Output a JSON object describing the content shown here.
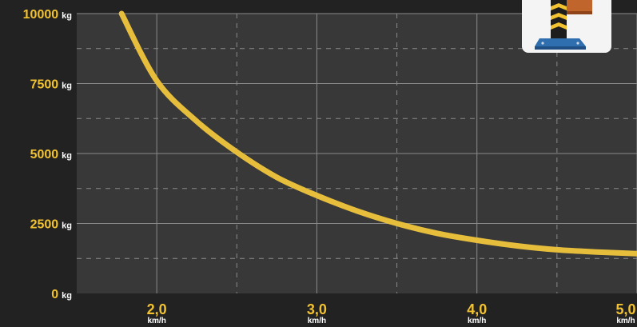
{
  "colors": {
    "background": "#222222",
    "plot_area": "#383838",
    "grid": "#8a8a8a",
    "curve": "#e6be3c",
    "tick_number": "#f2c230",
    "tick_unit": "#ffffff"
  },
  "product_image": {
    "icon": "bollard-post-thumbnail"
  },
  "chart_data": {
    "type": "line",
    "title": "",
    "xlabel": "",
    "ylabel": "",
    "xlim": [
      1.5,
      5.0
    ],
    "ylim": [
      0,
      10000
    ],
    "grid": true,
    "grid_minor": "dashed",
    "x_ticks": [
      {
        "value": 2.0,
        "label": "2,0",
        "unit": "km/h"
      },
      {
        "value": 3.0,
        "label": "3,0",
        "unit": "km/h"
      },
      {
        "value": 4.0,
        "label": "4,0",
        "unit": "km/h"
      },
      {
        "value": 5.0,
        "label": "5,0",
        "unit": "km/h"
      }
    ],
    "x_minor_ticks": [
      2.5,
      3.5,
      4.5
    ],
    "y_ticks": [
      {
        "value": 0,
        "label": "0",
        "unit": "kg"
      },
      {
        "value": 2500,
        "label": "2500",
        "unit": "kg"
      },
      {
        "value": 5000,
        "label": "5000",
        "unit": "kg"
      },
      {
        "value": 7500,
        "label": "7500",
        "unit": "kg"
      },
      {
        "value": 10000,
        "label": "10000",
        "unit": "kg"
      }
    ],
    "y_minor_ticks": [
      1250,
      3750,
      6250,
      8750
    ],
    "series": [
      {
        "x": [
          1.78,
          2.0,
          2.25,
          2.5,
          2.75,
          3.0,
          3.25,
          3.5,
          3.75,
          4.0,
          4.25,
          4.5,
          4.75,
          5.0
        ],
        "y": [
          10000,
          7600,
          6150,
          5050,
          4150,
          3500,
          2950,
          2500,
          2150,
          1900,
          1700,
          1560,
          1480,
          1420
        ]
      }
    ]
  }
}
